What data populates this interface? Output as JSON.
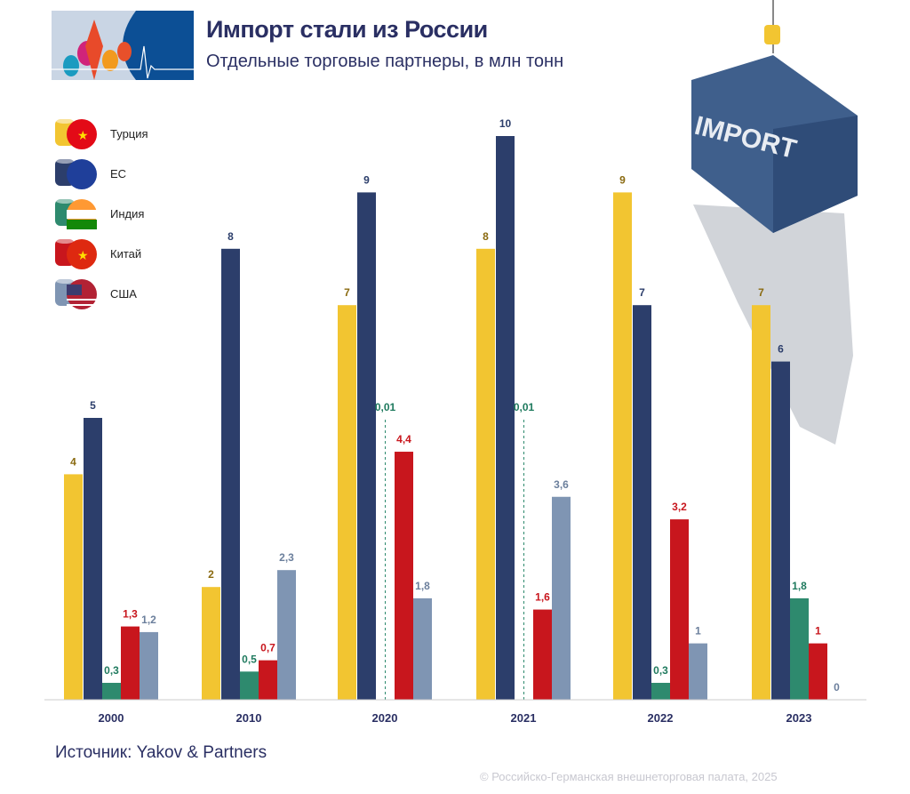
{
  "header": {
    "title": "Импорт стали из России",
    "subtitle": "Отдельные торговые партнеры, в млн тонн"
  },
  "illustration": {
    "container_label": "IMPORT"
  },
  "chart_data": {
    "type": "bar",
    "title": "Импорт стали из России",
    "subtitle": "Отдельные торговые партнеры, в млн тонн",
    "categories": [
      "2000",
      "2010",
      "2020",
      "2021",
      "2022",
      "2023"
    ],
    "series": [
      {
        "name": "Турция",
        "color": "#f2c531",
        "label_color": "#8a6a10",
        "values": [
          4,
          2,
          7,
          8,
          9,
          7
        ],
        "labels": [
          "4",
          "2",
          "7",
          "8",
          "9",
          "7"
        ]
      },
      {
        "name": "ЕС",
        "color": "#2c3e6b",
        "label_color": "#2c3e6b",
        "values": [
          5,
          8,
          9,
          10,
          7,
          6
        ],
        "labels": [
          "5",
          "8",
          "9",
          "10",
          "7",
          "6"
        ]
      },
      {
        "name": "Индия",
        "color": "#2e8a6e",
        "label_color": "#1f7a5e",
        "values": [
          0.3,
          0.5,
          0.01,
          0.01,
          0.3,
          1.8
        ],
        "labels": [
          "0,3",
          "0,5",
          "0,01",
          "0,01",
          "0,3",
          "1,8"
        ]
      },
      {
        "name": "Китай",
        "color": "#c8161d",
        "label_color": "#c8161d",
        "values": [
          1.3,
          0.7,
          4.4,
          1.6,
          3.2,
          1
        ],
        "labels": [
          "1,3",
          "0,7",
          "4,4",
          "1,6",
          "3,2",
          "1"
        ]
      },
      {
        "name": "США",
        "color": "#7f95b3",
        "label_color": "#6b7f9c",
        "values": [
          1.2,
          2.3,
          1.8,
          3.6,
          1,
          0
        ],
        "labels": [
          "1,2",
          "2,3",
          "1,8",
          "3,6",
          "1",
          "0"
        ]
      }
    ],
    "ylim": [
      0,
      10
    ],
    "grid": false,
    "legend_position": "top-left"
  },
  "footer": {
    "source": "Источник: Yakov & Partners",
    "copyright": "© Российско-Германская внешнеторговая палата, 2025"
  }
}
